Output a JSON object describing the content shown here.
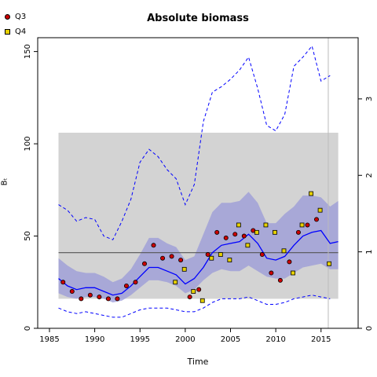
{
  "legend": [
    {
      "label": "Q3",
      "color": "#cc0000",
      "marker": "circle"
    },
    {
      "label": "Q4",
      "color": "#e6d000",
      "marker": "square"
    }
  ],
  "chart_data": {
    "type": "line",
    "title": "Absolute biomass",
    "xlabel": "Time",
    "ylabel": "Bₜ",
    "xlim": [
      1983.7,
      2019.1
    ],
    "ylim": [
      0,
      157.5
    ],
    "y2lim": [
      0,
      3.8
    ],
    "x_ticks": [
      1985,
      1990,
      1995,
      2000,
      2005,
      2010,
      2015
    ],
    "y_ticks": [
      0,
      50,
      100,
      150
    ],
    "y2_ticks": [
      0,
      1,
      2,
      3
    ],
    "grid": false,
    "colors": {
      "estimate": "#0000ff",
      "band": "#9a9ad8",
      "reference_box": "#d3d3d3",
      "reference_line": "#555555"
    },
    "reference_box": {
      "x": [
        1986,
        2016.9
      ],
      "y": [
        16,
        106
      ]
    },
    "reference_line": {
      "y": 41
    },
    "vertical_line": {
      "x": 2015.8
    },
    "estimate": {
      "x": [
        1986,
        1987,
        1988,
        1989,
        1990,
        1991,
        1992,
        1993,
        1994,
        1995,
        1996,
        1997,
        1998,
        1999,
        2000,
        2001,
        2002,
        2003,
        2004,
        2005,
        2006,
        2007,
        2008,
        2009,
        2010,
        2011,
        2012,
        2013,
        2014,
        2015,
        2016,
        2016.9
      ],
      "y": [
        27,
        23,
        21,
        22,
        22,
        20,
        18,
        19,
        23,
        28,
        33,
        33,
        31,
        29,
        24,
        27,
        33,
        41,
        45,
        46,
        47,
        51,
        46,
        38,
        37,
        39,
        45,
        50,
        52,
        53,
        46,
        47
      ]
    },
    "ci_lower": [
      19,
      17,
      16,
      17,
      17,
      16,
      14,
      15,
      18,
      22,
      26,
      26,
      25,
      23,
      19,
      21,
      26,
      30,
      32,
      31,
      31,
      34,
      31,
      28,
      27,
      27,
      30,
      33,
      34,
      35,
      32,
      32
    ],
    "ci_upper": [
      38,
      34,
      31,
      30,
      30,
      28,
      25,
      27,
      32,
      40,
      49,
      49,
      46,
      44,
      37,
      39,
      51,
      63,
      68,
      68,
      69,
      74,
      68,
      57,
      57,
      62,
      66,
      72,
      72,
      71,
      66,
      69
    ],
    "upper_dashed": [
      67,
      64,
      58,
      60,
      59,
      50,
      48,
      58,
      70,
      90,
      97,
      93,
      86,
      81,
      67,
      78,
      112,
      128,
      131,
      135,
      140,
      147,
      130,
      110,
      107,
      116,
      142,
      147,
      153,
      134,
      137
    ],
    "lower_dashed": [
      11,
      9,
      8,
      9,
      8,
      7,
      6,
      6,
      8,
      10,
      11,
      11,
      11,
      10,
      9,
      9,
      11,
      14,
      16,
      16,
      16,
      17,
      15,
      13,
      13,
      14,
      16,
      17,
      18,
      17,
      16
    ],
    "series": [
      {
        "name": "Q3",
        "x": [
          1986.5,
          1987.5,
          1988.5,
          1989.5,
          1990.5,
          1991.5,
          1992.5,
          1993.5,
          1994.5,
          1995.5,
          1996.5,
          1997.5,
          1998.5,
          1999.5,
          2000.5,
          2001.5,
          2002.5,
          2003.5,
          2004.5,
          2005.5,
          2006.5,
          2007.5,
          2008.5,
          2009.5,
          2010.5,
          2011.5,
          2012.5,
          2013.5,
          2014.5
        ],
        "y": [
          25,
          20,
          16,
          18,
          17,
          16,
          16,
          23,
          25,
          35,
          45,
          38,
          39,
          37,
          17,
          21,
          40,
          52,
          49,
          51,
          50,
          53,
          40,
          30,
          26,
          36,
          52,
          56,
          59
        ]
      },
      {
        "name": "Q4",
        "x": [
          1998.9,
          1999.9,
          2000.9,
          2001.9,
          2002.9,
          2003.9,
          2004.9,
          2005.9,
          2006.9,
          2007.9,
          2008.9,
          2009.9,
          2010.9,
          2011.9,
          2012.9,
          2013.9,
          2014.9,
          2015.9
        ],
        "y": [
          25,
          32,
          20,
          15,
          38,
          40,
          37,
          56,
          45,
          52,
          56,
          52,
          42,
          30,
          56,
          73,
          64,
          35
        ]
      }
    ]
  }
}
